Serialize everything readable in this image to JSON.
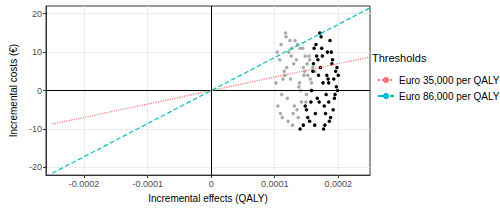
{
  "chart_data": {
    "type": "scatter",
    "x_label": "Incremental effects (QALY)",
    "y_label": "Incremental costs (€)",
    "legend_title": "Thresholds",
    "legend": "right",
    "grid": true,
    "xlim": [
      -0.00026,
      0.00025
    ],
    "xticks": [
      -0.0002,
      -0.0001,
      0,
      0.0001,
      0.0002
    ],
    "ylim": [
      -22,
      22
    ],
    "yticks": [
      -20,
      -10,
      0,
      10,
      20
    ],
    "series": [
      {
        "type": "scatter",
        "color": "#aaaaaa",
        "marker": "circle",
        "x": [
          0.000102,
          0.000105,
          0.000108,
          0.00011,
          0.000112,
          0.000115,
          0.000118,
          0.00012,
          0.000122,
          0.000125,
          0.000128,
          0.00013,
          0.000132,
          0.000135,
          0.000138,
          0.00014,
          0.000142,
          0.000145,
          0.000148,
          0.00015,
          0.000152,
          0.000155,
          0.000158,
          0.00016,
          0.000163,
          0.000104,
          0.000109,
          0.000113,
          0.000117,
          0.000121,
          0.000126,
          0.000131,
          0.000136,
          0.000141,
          0.000146,
          0.000151,
          0.000156,
          0.000111,
          0.000119,
          0.000124,
          0.000129,
          0.000134,
          0.000139,
          0.000144,
          0.000149,
          0.000154,
          0.000116,
          0.000127,
          0.000137,
          0.000147
        ],
        "values": [
          2,
          -4,
          8,
          12,
          -7,
          5,
          14,
          -2,
          10,
          3,
          -9,
          7,
          13,
          -5,
          1,
          11,
          -3,
          6,
          9,
          -1,
          4,
          8,
          2,
          6,
          5,
          10,
          -6,
          3,
          15,
          -8,
          9,
          -4,
          12,
          0,
          4,
          7,
          3,
          -1,
          6,
          13,
          -6,
          8,
          2,
          11,
          -3,
          9,
          4,
          11,
          -7,
          5
        ]
      },
      {
        "type": "scatter",
        "color": "#000000",
        "marker": "circle",
        "x": [
          0.000155,
          0.00016,
          0.000165,
          0.00017,
          0.000175,
          0.00018,
          0.000185,
          0.00019,
          0.000195,
          0.0002,
          0.000158,
          0.000163,
          0.000168,
          0.000173,
          0.000178,
          0.000183,
          0.000188,
          0.000193,
          0.000198,
          0.000162,
          0.000167,
          0.000172,
          0.000177,
          0.000182,
          0.000187,
          0.000192,
          0.000197,
          0.000157,
          0.000166,
          0.000176,
          0.000186,
          0.000196,
          0.000171,
          0.000181,
          0.000191,
          0.000164,
          0.000174,
          0.000184,
          0.000194,
          0.000145,
          0.00015,
          0.00014,
          0.000152,
          0.000148,
          0.000169,
          0.000179,
          0.000189,
          0.000199,
          0.000161,
          0.000185
        ],
        "values": [
          -8,
          5,
          12,
          -3,
          9,
          -6,
          2,
          7,
          -1,
          4,
          0,
          -9,
          8,
          14,
          -4,
          10,
          -7,
          3,
          6,
          11,
          -2,
          6,
          -10,
          4,
          13,
          -5,
          1,
          -3,
          9,
          2,
          -8,
          5,
          15,
          -1,
          8,
          -6,
          11,
          3,
          -2,
          -9,
          -5,
          -10,
          -7,
          -4,
          4,
          -9,
          10,
          0,
          7,
          -3
        ]
      },
      {
        "type": "line",
        "name": "Euro 35,000 per QALY",
        "color": "#F8766D",
        "line_style": "dotted",
        "x": [
          -0.00025,
          0.00025
        ],
        "values": [
          -8.75,
          8.75
        ]
      },
      {
        "type": "line",
        "name": "Euro 86,000 per QALY",
        "color": "#00BFC4",
        "line_style": "dashed",
        "x": [
          -0.00025,
          0.00025
        ],
        "values": [
          -21.5,
          21.5
        ]
      }
    ]
  }
}
